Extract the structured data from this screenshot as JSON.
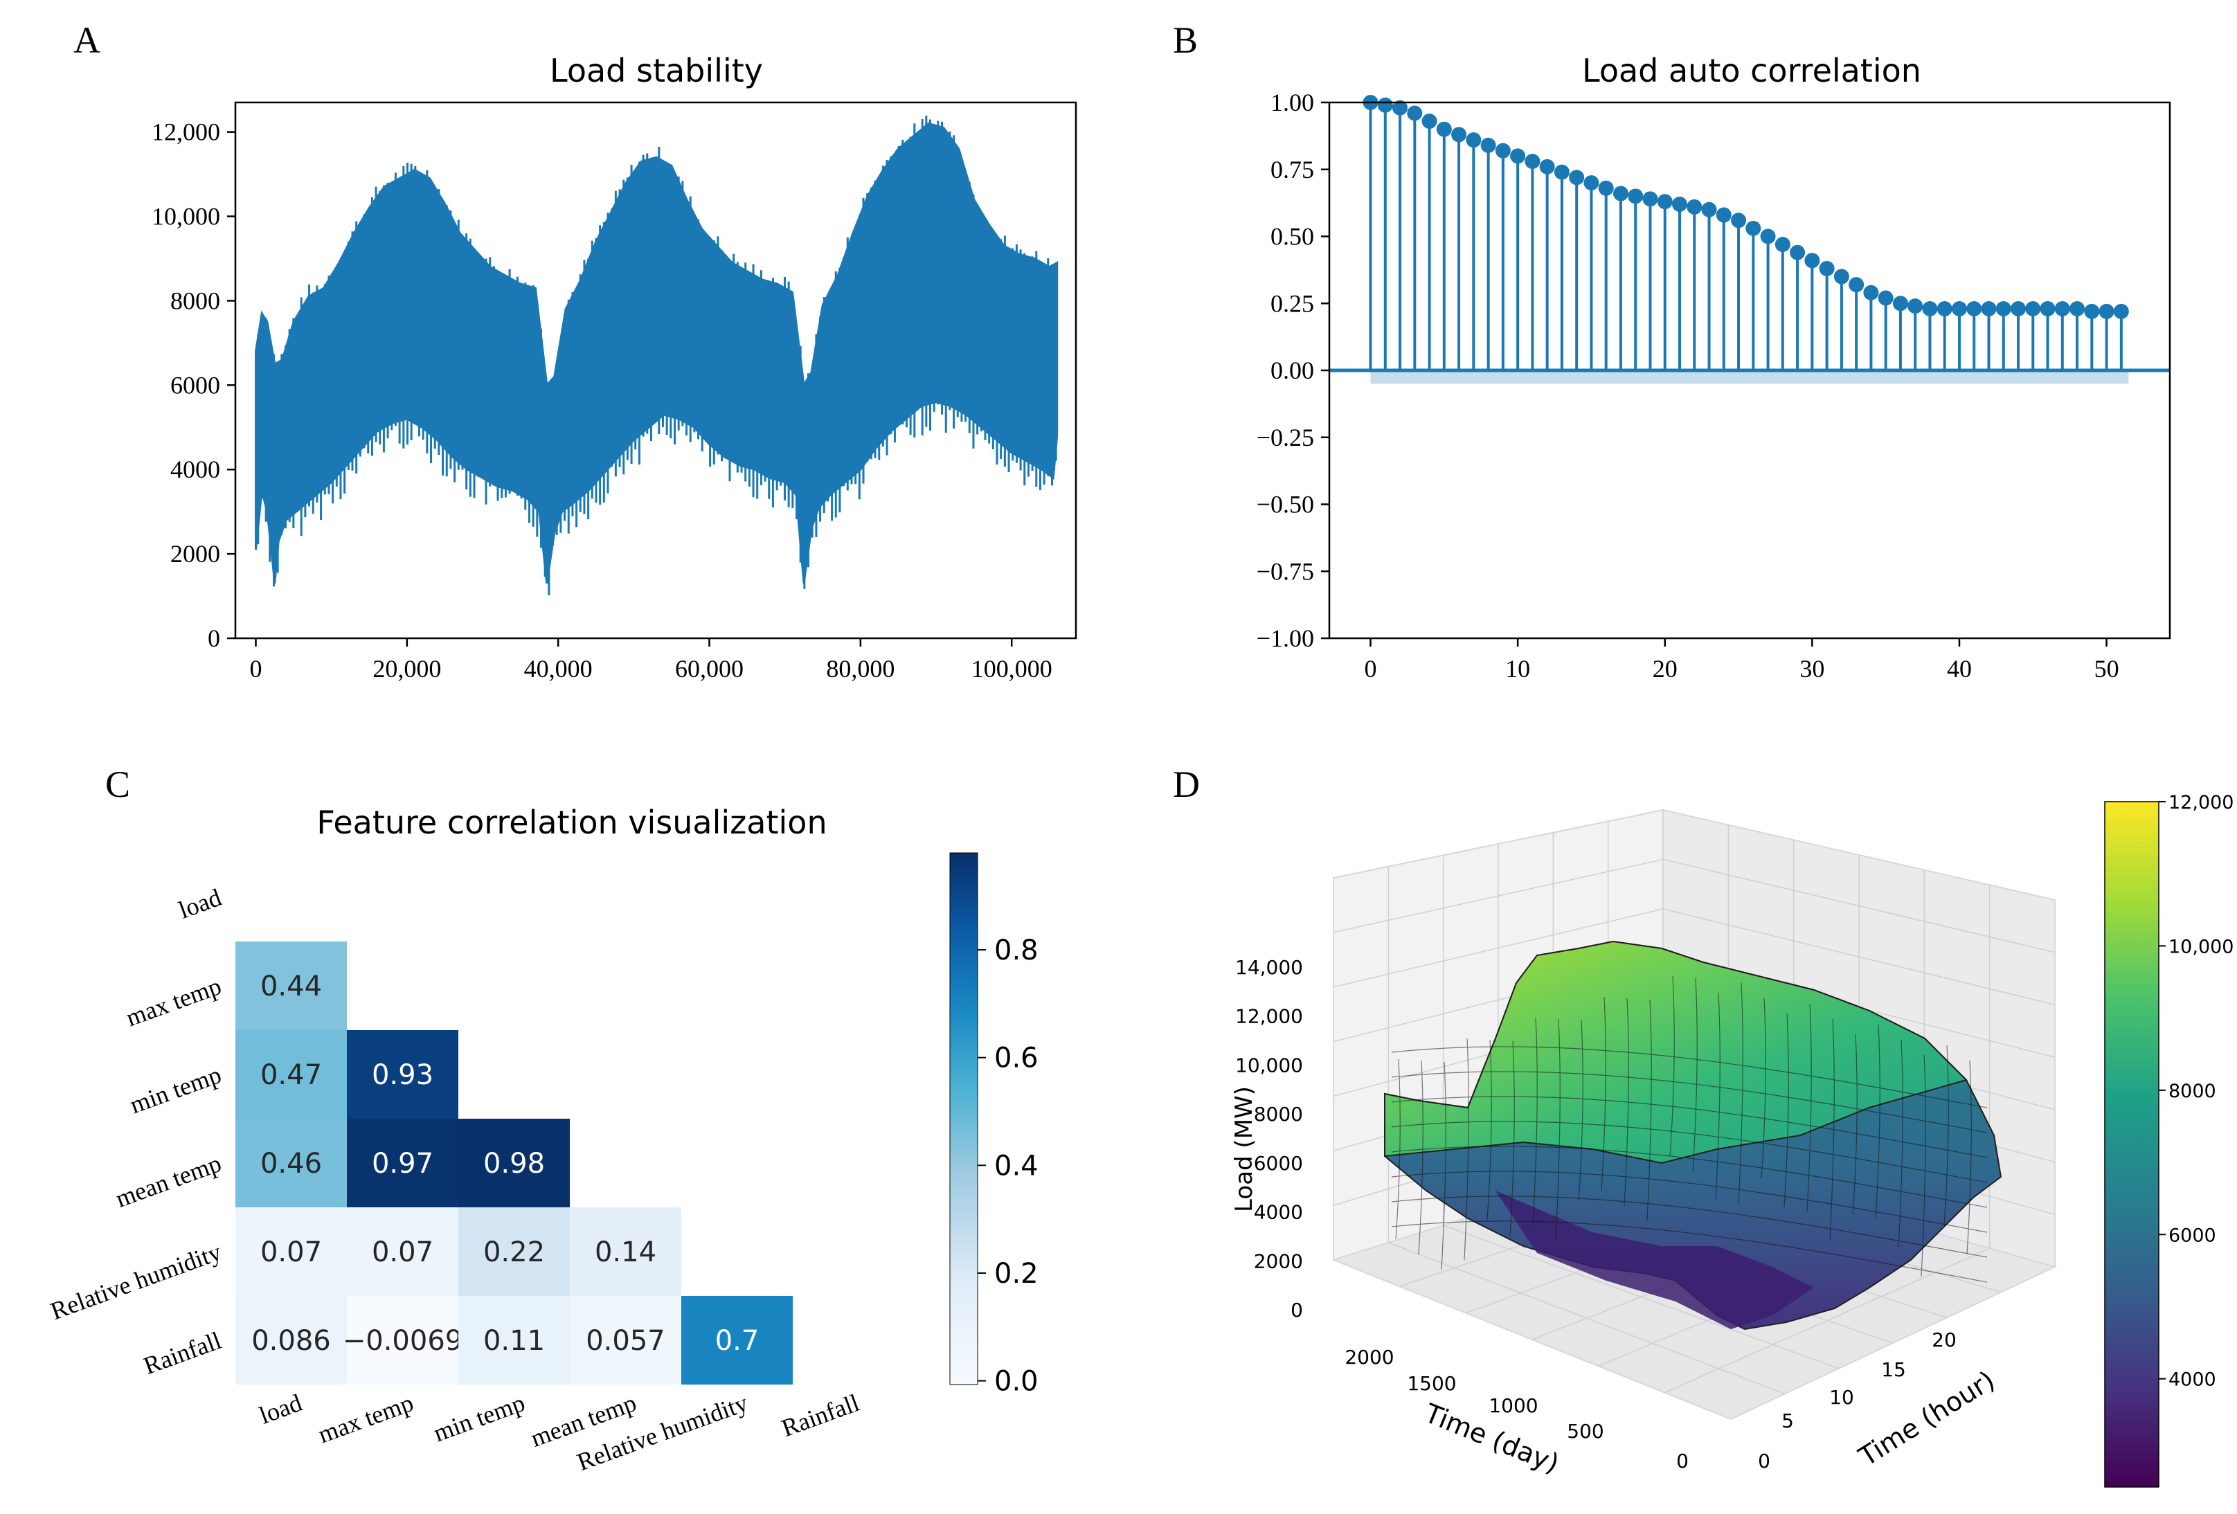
{
  "panel_labels": {
    "a": "A",
    "b": "B",
    "c": "C",
    "d": "D"
  },
  "colors": {
    "series": "#1f77b4",
    "frame": "#000000",
    "grid": "#dddddd"
  },
  "chart_data": [
    {
      "id": "A",
      "type": "line",
      "title": "Load stability",
      "xlabel": "",
      "ylabel": "",
      "xlim": [
        -2700,
        108500
      ],
      "ylim": [
        0,
        12700
      ],
      "xticks": [
        0,
        20000,
        40000,
        60000,
        80000,
        100000
      ],
      "xtick_labels": [
        "0",
        "20,000",
        "40,000",
        "60,000",
        "80,000",
        "100,000"
      ],
      "yticks": [
        0,
        2000,
        4000,
        6000,
        8000,
        10000,
        12000
      ],
      "ytick_labels": [
        "0",
        "2000",
        "4000",
        "6000",
        "8000",
        "10,000",
        "12,000"
      ],
      "series": [
        {
          "name": "upper envelope",
          "x": [
            0,
            800,
            1500,
            2500,
            3500,
            5000,
            7000,
            9000,
            11000,
            13000,
            15000,
            17000,
            19000,
            21000,
            23000,
            25000,
            27000,
            29000,
            31000,
            33000,
            35000,
            37000,
            38500,
            39500,
            41000,
            43000,
            45000,
            47000,
            49000,
            51000,
            53000,
            55000,
            57000,
            59000,
            61000,
            63000,
            65000,
            67000,
            69000,
            71000,
            72500,
            73500,
            75000,
            77000,
            79000,
            81000,
            83000,
            85000,
            87000,
            89000,
            91000,
            93000,
            95000,
            97000,
            99000,
            101000,
            103000,
            105000,
            106000
          ],
          "values": [
            6800,
            7700,
            7500,
            6500,
            6600,
            7500,
            8100,
            8300,
            8900,
            9600,
            10200,
            10700,
            10900,
            11100,
            10900,
            10300,
            9600,
            9200,
            8800,
            8600,
            8400,
            8300,
            6000,
            6200,
            7800,
            8500,
            9400,
            10100,
            10800,
            11300,
            11400,
            11200,
            10400,
            9700,
            9300,
            8900,
            8700,
            8500,
            8400,
            8200,
            6000,
            6300,
            7900,
            8600,
            9600,
            10500,
            11100,
            11600,
            11900,
            12200,
            12100,
            11600,
            10400,
            9800,
            9300,
            9100,
            9000,
            8800,
            8900
          ]
        },
        {
          "name": "lower envelope",
          "x": [
            0,
            800,
            1500,
            2000,
            2500,
            3000,
            4000,
            6000,
            8000,
            10000,
            12000,
            14000,
            16000,
            18000,
            20000,
            22000,
            24000,
            26000,
            28000,
            30000,
            32000,
            34000,
            36000,
            37500,
            38500,
            39500,
            40500,
            42000,
            44000,
            46000,
            48000,
            50000,
            52000,
            54000,
            56000,
            58000,
            60000,
            62000,
            64000,
            66000,
            68000,
            70000,
            71500,
            72500,
            73500,
            74500,
            76000,
            78000,
            80000,
            82000,
            84000,
            86000,
            88000,
            90000,
            92000,
            94000,
            96000,
            98000,
            100000,
            102000,
            104000,
            105500,
            106000
          ],
          "values": [
            2100,
            3500,
            3000,
            2200,
            1300,
            2300,
            2800,
            3100,
            3400,
            3700,
            4100,
            4500,
            4900,
            5100,
            5200,
            5000,
            4700,
            4300,
            4000,
            3800,
            3600,
            3500,
            3300,
            3000,
            1300,
            2500,
            3000,
            3200,
            3500,
            3900,
            4300,
            4700,
            5000,
            5300,
            5200,
            5000,
            4600,
            4300,
            4100,
            4000,
            3800,
            3700,
            3400,
            1300,
            2600,
            3100,
            3400,
            3700,
            4000,
            4500,
            4900,
            5200,
            5500,
            5600,
            5500,
            5300,
            5000,
            4700,
            4400,
            4200,
            4000,
            3800,
            4800
          ]
        }
      ]
    },
    {
      "id": "B",
      "type": "stem",
      "title": "Load auto correlation",
      "xlabel": "",
      "ylabel": "",
      "xlim": [
        -2.8,
        54.3
      ],
      "ylim": [
        -1.0,
        1.0
      ],
      "xticks": [
        0,
        10,
        20,
        30,
        40,
        50
      ],
      "xtick_labels": [
        "0",
        "10",
        "20",
        "30",
        "40",
        "50"
      ],
      "yticks": [
        1.0,
        0.75,
        0.5,
        0.25,
        0.0,
        -0.25,
        -0.5,
        -0.75,
        -1.0
      ],
      "ytick_labels": [
        "1.00",
        "0.75",
        "0.50",
        "0.25",
        "0.00",
        "−0.25",
        "−0.50",
        "−0.75",
        "−1.00"
      ],
      "lags": [
        0,
        1,
        2,
        3,
        4,
        5,
        6,
        7,
        8,
        9,
        10,
        11,
        12,
        13,
        14,
        15,
        16,
        17,
        18,
        19,
        20,
        21,
        22,
        23,
        24,
        25,
        26,
        27,
        28,
        29,
        30,
        31,
        32,
        33,
        34,
        35,
        36,
        37,
        38,
        39,
        40,
        41,
        42,
        43,
        44,
        45,
        46,
        47,
        48,
        49,
        50,
        51
      ],
      "values": [
        1.0,
        0.99,
        0.98,
        0.96,
        0.93,
        0.9,
        0.88,
        0.86,
        0.84,
        0.82,
        0.8,
        0.78,
        0.76,
        0.74,
        0.72,
        0.7,
        0.68,
        0.66,
        0.65,
        0.64,
        0.63,
        0.62,
        0.61,
        0.6,
        0.58,
        0.56,
        0.53,
        0.5,
        0.47,
        0.44,
        0.41,
        0.38,
        0.35,
        0.32,
        0.29,
        0.27,
        0.25,
        0.24,
        0.23,
        0.23,
        0.23,
        0.23,
        0.23,
        0.23,
        0.23,
        0.23,
        0.23,
        0.23,
        0.23,
        0.22,
        0.22,
        0.22
      ],
      "confidence_band": [
        0.0,
        -0.05
      ]
    },
    {
      "id": "C",
      "type": "heatmap",
      "title": "Feature correlation visualization",
      "variables": [
        "load",
        "max temp",
        "min temp",
        "mean temp",
        "Relative humidity",
        "Rainfall"
      ],
      "cells": [
        {
          "row": 1,
          "col": 0,
          "value": 0.44,
          "label": "0.44"
        },
        {
          "row": 2,
          "col": 0,
          "value": 0.47,
          "label": "0.47"
        },
        {
          "row": 2,
          "col": 1,
          "value": 0.93,
          "label": "0.93"
        },
        {
          "row": 3,
          "col": 0,
          "value": 0.46,
          "label": "0.46"
        },
        {
          "row": 3,
          "col": 1,
          "value": 0.97,
          "label": "0.97"
        },
        {
          "row": 3,
          "col": 2,
          "value": 0.98,
          "label": "0.98"
        },
        {
          "row": 4,
          "col": 0,
          "value": 0.07,
          "label": "0.07"
        },
        {
          "row": 4,
          "col": 1,
          "value": 0.07,
          "label": "0.07"
        },
        {
          "row": 4,
          "col": 2,
          "value": 0.22,
          "label": "0.22"
        },
        {
          "row": 4,
          "col": 3,
          "value": 0.14,
          "label": "0.14"
        },
        {
          "row": 5,
          "col": 0,
          "value": 0.086,
          "label": "0.086"
        },
        {
          "row": 5,
          "col": 1,
          "value": -0.0069,
          "label": "−0.0069"
        },
        {
          "row": 5,
          "col": 2,
          "value": 0.11,
          "label": "0.11"
        },
        {
          "row": 5,
          "col": 3,
          "value": 0.057,
          "label": "0.057"
        },
        {
          "row": 5,
          "col": 4,
          "value": 0.7,
          "label": "0.7"
        }
      ],
      "colorbar": {
        "cmap": "Blues",
        "vmin": -0.0069,
        "vmax": 0.98,
        "ticks": [
          0.0,
          0.2,
          0.4,
          0.6,
          0.8
        ],
        "tick_labels": [
          "0.0",
          "0.2",
          "0.4",
          "0.6",
          "0.8"
        ]
      }
    },
    {
      "id": "D",
      "type": "surface3d",
      "title": "",
      "xlabel": "Time (day)",
      "ylabel": "Time (hour)",
      "zlabel": "Load (MW)",
      "x_ticks": [
        "0",
        "500",
        "1000",
        "1500",
        "2000"
      ],
      "y_ticks": [
        "0",
        "5",
        "10",
        "15",
        "20"
      ],
      "z_ticks": [
        "0",
        "2000",
        "4000",
        "6000",
        "8000",
        "10,000",
        "12,000",
        "14,000"
      ],
      "zlim": [
        0,
        14000
      ],
      "colorbar": {
        "cmap": "viridis",
        "vmin": 2500,
        "vmax": 12000,
        "ticks": [
          4000,
          6000,
          8000,
          10000,
          12000
        ],
        "tick_labels": [
          "4000",
          "6000",
          "8000",
          "10,000",
          "12,000"
        ]
      }
    }
  ]
}
